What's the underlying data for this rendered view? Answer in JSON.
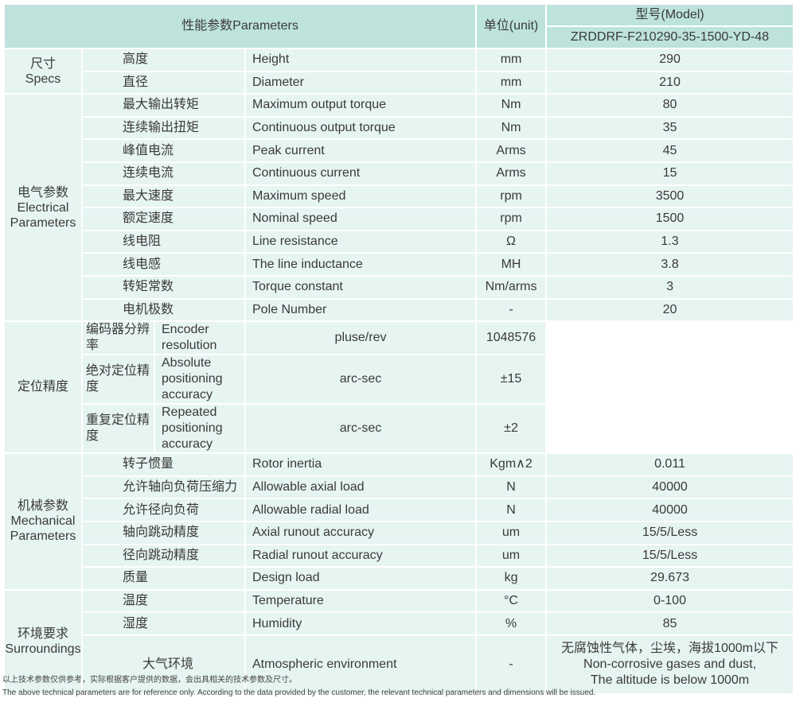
{
  "header": {
    "parameters": "性能参数Parameters",
    "unit": "单位(unit)",
    "model_label": "型号(Model)",
    "model": "ZRDDRF-F210290-35-1500-YD-48"
  },
  "groups": {
    "specs": {
      "cn": "尺寸",
      "en": "Specs"
    },
    "electrical": {
      "cn": "电气参数",
      "en": "Electrical Parameters"
    },
    "positioning": {
      "cn": "定位精度"
    },
    "mechanical": {
      "cn": "机械参数",
      "en": "Mechanical Parameters"
    },
    "surroundings": {
      "cn": "环境要求",
      "en": "Surroundings"
    }
  },
  "rows": [
    {
      "cn": "高度",
      "en": "Height",
      "unit": "mm",
      "value": "290"
    },
    {
      "cn": "直径",
      "en": "Diameter",
      "unit": "mm",
      "value": "210"
    },
    {
      "cn": "最大输出转矩",
      "en": "Maximum output torque",
      "unit": "Nm",
      "value": "80"
    },
    {
      "cn": "连续输出扭矩",
      "en": "Continuous output torque",
      "unit": "Nm",
      "value": "35"
    },
    {
      "cn": "峰值电流",
      "en": "Peak current",
      "unit": "Arms",
      "value": "45"
    },
    {
      "cn": "连续电流",
      "en": "Continuous current",
      "unit": "Arms",
      "value": "15"
    },
    {
      "cn": "最大速度",
      "en": "Maximum speed",
      "unit": "rpm",
      "value": "3500"
    },
    {
      "cn": "额定速度",
      "en": "Nominal speed",
      "unit": "rpm",
      "value": "1500"
    },
    {
      "cn": "线电阻",
      "en": "Line resistance",
      "unit": "Ω",
      "value": "1.3"
    },
    {
      "cn": "线电感",
      "en": "The line inductance",
      "unit": "MH",
      "value": "3.8"
    },
    {
      "cn": "转矩常数",
      "en": "Torque constant",
      "unit": "Nm/arms",
      "value": "3"
    },
    {
      "cn": "电机极数",
      "en": "Pole Number",
      "unit": "-",
      "value": "20"
    },
    {
      "cn": "编码器分辨率",
      "en": "Encoder resolution",
      "unit": "pluse/rev",
      "value": "1048576"
    },
    {
      "cn": "绝对定位精度",
      "en": "Absolute positioning accuracy",
      "unit": "arc-sec",
      "value": "±15"
    },
    {
      "cn": "重复定位精度",
      "en": "Repeated positioning accuracy",
      "unit": "arc-sec",
      "value": "±2"
    },
    {
      "cn": "转子惯量",
      "en": "Rotor inertia",
      "unit": "Kgm∧2",
      "value": "0.011"
    },
    {
      "cn": "允许轴向负荷压缩力",
      "en": "Allowable axial load",
      "unit": "N",
      "value": "40000"
    },
    {
      "cn": "允许径向负荷",
      "en": "Allowable radial load",
      "unit": "N",
      "value": "40000"
    },
    {
      "cn": "轴向跳动精度",
      "en": "Axial runout accuracy",
      "unit": "um",
      "value": "15/5/Less"
    },
    {
      "cn": "径向跳动精度",
      "en": "Radial runout accuracy",
      "unit": "um",
      "value": "15/5/Less"
    },
    {
      "cn": "质量",
      "en": "Design load",
      "unit": "kg",
      "value": "29.673"
    },
    {
      "cn": "温度",
      "en": "Temperature",
      "unit": "°C",
      "value": "0-100"
    },
    {
      "cn": "湿度",
      "en": "Humidity",
      "unit": "%",
      "value": "85"
    },
    {
      "cn": "大气环境",
      "en": "Atmospheric environment",
      "unit": "-",
      "value_lines": [
        "无腐蚀性气体，尘埃，海拔1000m以下",
        "Non-corrosive gases and dust,",
        "The altitude is below 1000m"
      ]
    }
  ],
  "notes": {
    "cn": "以上技术参数仅供参考，实际根据客户提供的数据，会出具相关的技术参数及尺寸。",
    "en": "The above technical parameters are for reference only. According to the data provided by the customer, the relevant technical parameters and dimensions will be issued."
  }
}
